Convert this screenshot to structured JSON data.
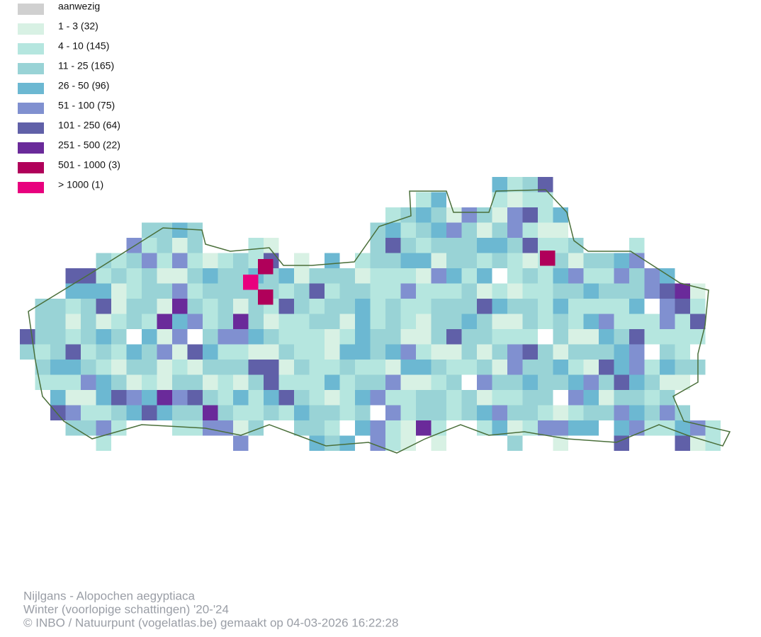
{
  "legend": {
    "items": [
      {
        "label": "aanwezig",
        "color": "#d0d0d0"
      },
      {
        "label": "1 - 3 (32)",
        "color": "#d8f1e4"
      },
      {
        "label": "4 - 10 (145)",
        "color": "#b5e6df"
      },
      {
        "label": "11 - 25 (165)",
        "color": "#99d3d6"
      },
      {
        "label": "26 - 50 (96)",
        "color": "#6cb8d2"
      },
      {
        "label": "51 - 100 (75)",
        "color": "#8090d0"
      },
      {
        "label": "101 - 250 (64)",
        "color": "#6060a8"
      },
      {
        "label": "251 - 500 (22)",
        "color": "#6a2a9a"
      },
      {
        "label": "501 - 1000 (3)",
        "color": "#b0005a"
      },
      {
        "label": "> 1000 (1)",
        "color": "#e8007e"
      }
    ]
  },
  "footer": {
    "lines": [
      "Nijlgans - Alopochen aegyptiaca",
      "Winter (voorlopige schattingen) '20-'24",
      "© INBO / Natuurpunt (vogelatlas.be) gemaakt op 04-03-2026 16:22:28"
    ]
  }
}
